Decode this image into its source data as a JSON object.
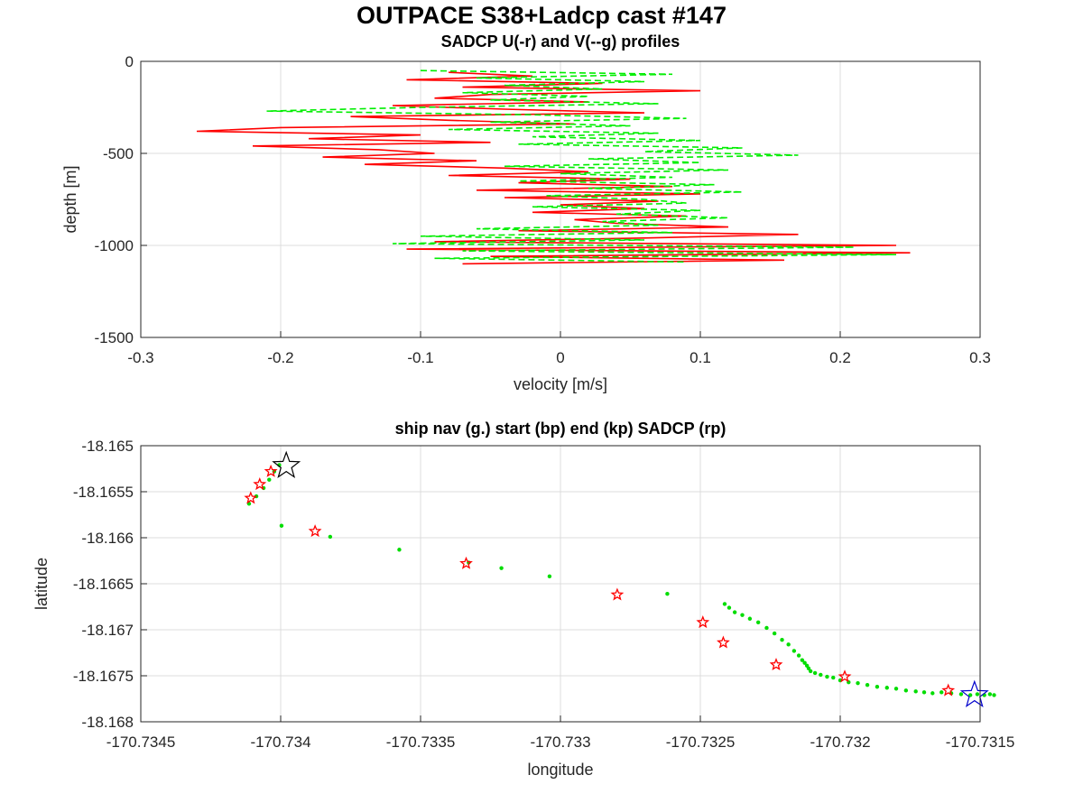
{
  "figure_title": "OUTPACE S38+Ladcp cast #147",
  "chart_data": [
    {
      "type": "line",
      "title": "SADCP U(-r) and V(--g) profiles",
      "xlabel": "velocity [m/s]",
      "ylabel": "depth [m]",
      "xlim": [
        -0.3,
        0.3
      ],
      "ylim": [
        -1500,
        0
      ],
      "xticks": [
        -0.3,
        -0.2,
        -0.1,
        0,
        0.1,
        0.2,
        0.3
      ],
      "xtick_labels": [
        "-0.3",
        "-0.2",
        "-0.1",
        "0",
        "0.1",
        "0.2",
        "0.3"
      ],
      "yticks": [
        0,
        -500,
        -1000,
        -1500
      ],
      "ytick_labels": [
        "0",
        "-500",
        "-1000",
        "-1500"
      ],
      "grid": true,
      "series": [
        {
          "color": "#ff0000",
          "style": "solid",
          "depth": [
            -60,
            -80,
            -100,
            -120,
            -140,
            -160,
            -180,
            -200,
            -220,
            -240,
            -260,
            -280,
            -300,
            -320,
            -340,
            -360,
            -380,
            -400,
            -420,
            -440,
            -460,
            -480,
            -500,
            -520,
            -540,
            -560,
            -580,
            -600,
            -620,
            -640,
            -660,
            -680,
            -700,
            -720,
            -740,
            -760,
            -780,
            -800,
            -820,
            -840,
            -860,
            -880,
            -900,
            -920,
            -940,
            -960,
            -980,
            -1000,
            -1020,
            -1040,
            -1060,
            -1080,
            -1100
          ],
          "values": [
            -0.08,
            -0.02,
            -0.11,
            0.03,
            -0.07,
            0.1,
            -0.05,
            -0.09,
            0.02,
            -0.12,
            -0.04,
            0.06,
            -0.15,
            -0.08,
            0.01,
            -0.2,
            -0.26,
            -0.1,
            -0.18,
            -0.05,
            -0.22,
            -0.13,
            -0.09,
            -0.17,
            -0.06,
            -0.14,
            -0.04,
            0.02,
            -0.08,
            0.05,
            -0.03,
            0.08,
            -0.06,
            0.1,
            -0.04,
            0.07,
            0.0,
            0.06,
            -0.02,
            0.09,
            0.01,
            0.04,
            0.12,
            -0.03,
            0.17,
            0.06,
            -0.09,
            0.24,
            -0.11,
            0.25,
            -0.05,
            0.16,
            -0.07
          ]
        },
        {
          "color": "#00ee00",
          "style": "dashed",
          "depth": [
            -50,
            -70,
            -90,
            -110,
            -130,
            -150,
            -170,
            -190,
            -210,
            -230,
            -250,
            -270,
            -290,
            -310,
            -330,
            -350,
            -370,
            -390,
            -410,
            -430,
            -450,
            -470,
            -490,
            -510,
            -530,
            -550,
            -570,
            -590,
            -610,
            -630,
            -650,
            -670,
            -690,
            -710,
            -730,
            -750,
            -770,
            -790,
            -810,
            -830,
            -850,
            -870,
            -890,
            -910,
            -930,
            -950,
            -970,
            -990,
            -1010,
            -1030,
            -1050,
            -1070,
            -1090
          ],
          "values": [
            -0.1,
            0.08,
            -0.06,
            0.06,
            -0.04,
            0.03,
            -0.07,
            0.02,
            -0.05,
            0.07,
            -0.1,
            -0.21,
            -0.02,
            0.09,
            -0.05,
            0.05,
            -0.08,
            0.07,
            -0.02,
            0.1,
            -0.03,
            0.13,
            0.06,
            0.17,
            0.02,
            0.1,
            -0.04,
            0.12,
            0.0,
            0.08,
            -0.03,
            0.11,
            0.02,
            0.13,
            -0.01,
            0.06,
            0.09,
            -0.02,
            0.1,
            0.04,
            0.12,
            0.03,
            0.07,
            -0.06,
            0.08,
            -0.1,
            0.06,
            -0.12,
            0.21,
            -0.07,
            0.24,
            -0.09,
            0.09
          ]
        }
      ]
    },
    {
      "type": "scatter",
      "title": "ship nav (g.) start (bp) end (kp) SADCP (rp)",
      "xlabel": "longitude",
      "ylabel": "latitude",
      "xlim": [
        -170.7345,
        -170.7315
      ],
      "ylim": [
        -18.168,
        -18.165
      ],
      "xticks": [
        -170.7345,
        -170.734,
        -170.7335,
        -170.733,
        -170.7325,
        -170.732,
        -170.7315
      ],
      "xtick_labels": [
        "-170.7345",
        "-170.734",
        "-170.7335",
        "-170.733",
        "-170.7325",
        "-170.732",
        "-170.7315"
      ],
      "yticks": [
        -18.165,
        -18.1655,
        -18.166,
        -18.1665,
        -18.167,
        -18.1675,
        -18.168
      ],
      "ytick_labels": [
        "-18.165",
        "-18.1655",
        "-18.166",
        "-18.1665",
        "-18.167",
        "-18.1675",
        "-18.168"
      ],
      "grid": true,
      "series": [
        {
          "marker": "dot",
          "color": "#00dd00",
          "x": [
            -170.734113,
            -170.734087,
            -170.734061,
            -170.734041,
            -170.734023,
            -170.734005,
            -170.733997,
            -170.733823,
            -170.733576,
            -170.733328,
            -170.733211,
            -170.733039,
            -170.732618,
            -170.732413,
            -170.732397,
            -170.732377,
            -170.73235,
            -170.732323,
            -170.732293,
            -170.732263,
            -170.732235,
            -170.732208,
            -170.732185,
            -170.732165,
            -170.732148,
            -170.732136,
            -170.732127,
            -170.732119,
            -170.732113,
            -170.732106,
            -170.73209,
            -170.73207,
            -170.732047,
            -170.732025,
            -170.732,
            -170.73197,
            -170.731937,
            -170.731903,
            -170.731868,
            -170.731833,
            -170.7318,
            -170.731765,
            -170.73173,
            -170.7317,
            -170.73167,
            -170.731638,
            -170.731603,
            -170.731568,
            -170.731535,
            -170.73151,
            -170.731485,
            -170.731465,
            -170.73145
          ],
          "y": [
            -18.16563,
            -18.16555,
            -18.16546,
            -18.16537,
            -18.16528,
            -18.16521,
            -18.16587,
            -18.16599,
            -18.16613,
            -18.16627,
            -18.16633,
            -18.16642,
            -18.16661,
            -18.16672,
            -18.16676,
            -18.16681,
            -18.16684,
            -18.16688,
            -18.16692,
            -18.16698,
            -18.16704,
            -18.16711,
            -18.16716,
            -18.16723,
            -18.16728,
            -18.16733,
            -18.16736,
            -18.16739,
            -18.16742,
            -18.16745,
            -18.16747,
            -18.16749,
            -18.16751,
            -18.16752,
            -18.16755,
            -18.16757,
            -18.16758,
            -18.1676,
            -18.16762,
            -18.16763,
            -18.16764,
            -18.16766,
            -18.16767,
            -18.16768,
            -18.16769,
            -18.16768,
            -18.16769,
            -18.1677,
            -18.16771,
            -18.1677,
            -18.16771,
            -18.1677,
            -18.16771
          ]
        },
        {
          "marker": "star",
          "color": "#ff0000",
          "x": [
            -170.734107,
            -170.734075,
            -170.734035,
            -170.733877,
            -170.733337,
            -170.732797,
            -170.732491,
            -170.732418,
            -170.732229,
            -170.731984,
            -170.731614
          ],
          "y": [
            -18.16557,
            -18.16542,
            -18.16528,
            -18.16593,
            -18.16628,
            -18.16662,
            -18.16692,
            -18.16714,
            -18.16738,
            -18.16751,
            -18.16766
          ]
        },
        {
          "marker": "star",
          "color": "#000000",
          "size": "large",
          "x": [
            -170.73398
          ],
          "y": [
            -18.16522
          ]
        },
        {
          "marker": "star",
          "color": "#0000cc",
          "size": "large",
          "x": [
            -170.73152
          ],
          "y": [
            -18.16771
          ]
        }
      ]
    }
  ]
}
